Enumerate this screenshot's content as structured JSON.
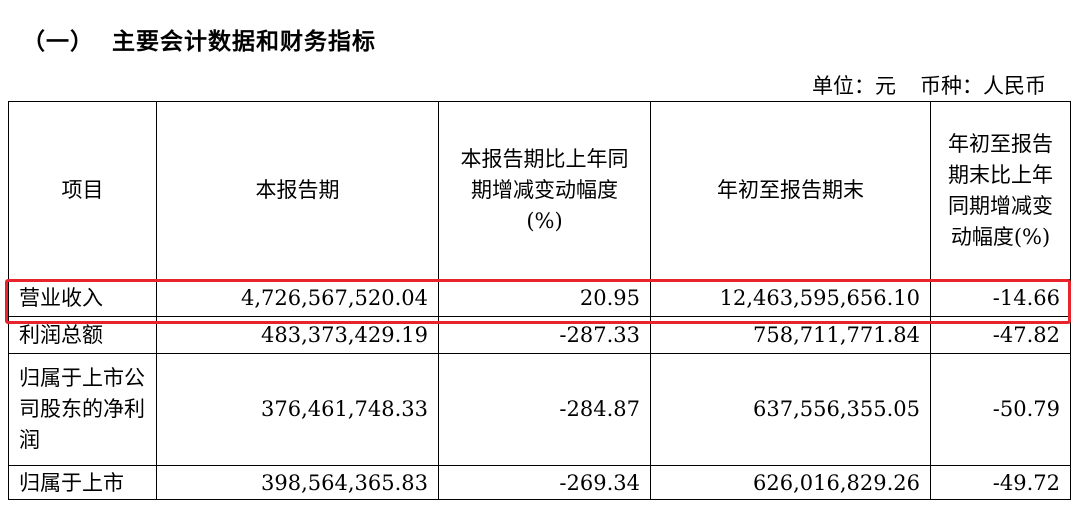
{
  "heading": {
    "number": "（一）",
    "text": "主要会计数据和财务指标"
  },
  "unit": {
    "unit_label": "单位：元",
    "currency_label": "币种：人民币"
  },
  "table": {
    "headers": [
      "项目",
      "本报告期",
      "本报告期比上年同期增减变动幅度(%)",
      "年初至报告期末",
      "年初至报告期末比上年同期增减变动幅度(%)"
    ],
    "rows": [
      {
        "item": "营业收入",
        "current": "4,726,567,520.04",
        "current_change": "20.95",
        "ytd": "12,463,595,656.10",
        "ytd_change": "-14.66"
      },
      {
        "item": "利润总额",
        "current": "483,373,429.19",
        "current_change": "-287.33",
        "ytd": "758,711,771.84",
        "ytd_change": "-47.82"
      },
      {
        "item": "归属于上市公司股东的净利润",
        "current": "376,461,748.33",
        "current_change": "-284.87",
        "ytd": "637,556,355.05",
        "ytd_change": "-50.79"
      },
      {
        "item": "归属于上市",
        "current": "398,564,365.83",
        "current_change": "-269.34",
        "ytd": "626,016,829.26",
        "ytd_change": "-49.72"
      }
    ]
  },
  "highlight_color": "#e8232b"
}
